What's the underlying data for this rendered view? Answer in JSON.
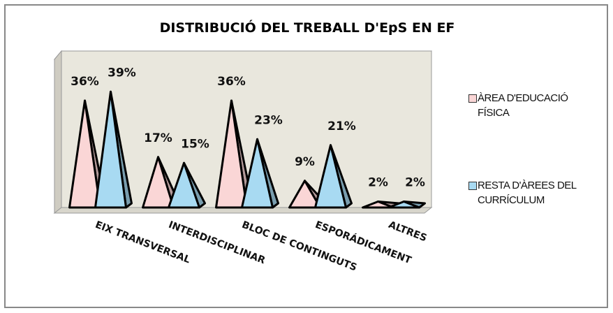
{
  "chart_data": {
    "type": "pyramid",
    "title": "DISTRIBUCIÓ DEL TREBALL D'EpS EN EF",
    "categories": [
      "EIX TRANSVERSAL",
      "INTERDISCIPLINAR",
      "BLOC DE CONTINGUTS",
      "ESPORÁDICAMENT",
      "ALTRES"
    ],
    "series": [
      {
        "name": "ÀREA D'EDUCACIÓ FÍSICA",
        "color": "#fad6d6",
        "values": [
          36,
          17,
          36,
          9,
          2
        ],
        "value_labels": [
          "36%",
          "17%",
          "36%",
          "9%",
          "2%"
        ]
      },
      {
        "name": "RESTA D'ÀREES DEL CURRÍCULUM",
        "color": "#a8daf2",
        "values": [
          39,
          15,
          23,
          21,
          2
        ],
        "value_labels": [
          "39%",
          "15%",
          "23%",
          "21%",
          "2%"
        ]
      }
    ],
    "legend": "right"
  }
}
